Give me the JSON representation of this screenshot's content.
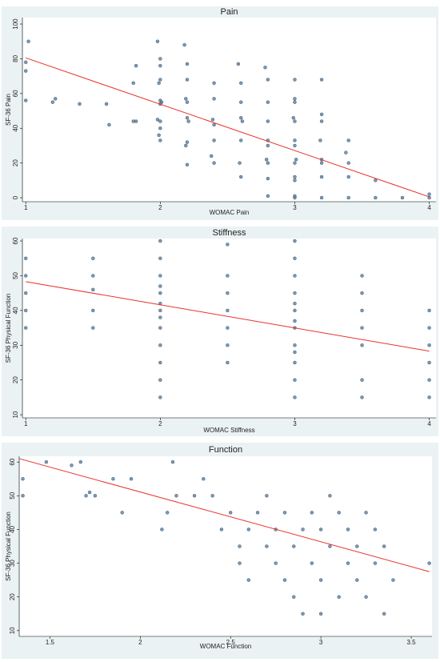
{
  "chart_data": [
    {
      "type": "scatter",
      "title": "Pain",
      "x_label": "WOMAC Pain",
      "y_label": "SF-36 Pain",
      "color": "#5b7f9f",
      "x": [
        1.0,
        1.0,
        1.02,
        1.0,
        1.2,
        1.22,
        1.4,
        1.6,
        1.62,
        1.8,
        1.82,
        1.8,
        1.82,
        1.98,
        2.0,
        2.0,
        2.0,
        1.99,
        2.0,
        2.01,
        2.0,
        1.98,
        2.0,
        2.0,
        1.99,
        2.0,
        2.18,
        2.2,
        2.2,
        2.19,
        2.2,
        2.2,
        2.21,
        2.2,
        2.19,
        2.2,
        2.4,
        2.4,
        2.39,
        2.4,
        2.4,
        2.38,
        2.4,
        2.58,
        2.6,
        2.6,
        2.6,
        2.61,
        2.6,
        2.59,
        2.6,
        2.78,
        2.8,
        2.8,
        2.8,
        2.8,
        2.8,
        2.79,
        2.8,
        2.8,
        2.8,
        3.0,
        3.0,
        3.0,
        2.99,
        3.0,
        3.0,
        3.0,
        3.01,
        3.0,
        3.0,
        3.0,
        3.0,
        3.0,
        3.2,
        3.2,
        3.2,
        3.19,
        3.2,
        3.2,
        3.2,
        3.2,
        3.4,
        3.38,
        3.4,
        3.4,
        3.4,
        3.6,
        3.6,
        3.8,
        4.0,
        4.0
      ],
      "y": [
        78,
        73,
        90,
        56,
        55,
        57,
        54,
        54,
        42,
        44,
        44,
        66,
        76,
        90,
        80,
        76,
        68,
        66,
        56,
        55,
        54,
        45,
        44,
        40,
        36,
        33,
        88,
        77,
        68,
        57,
        55,
        46,
        44,
        32,
        30,
        19,
        66,
        57,
        45,
        42,
        33,
        24,
        20,
        77,
        66,
        55,
        46,
        44,
        33,
        20,
        12,
        75,
        68,
        55,
        44,
        33,
        30,
        22,
        20,
        11,
        1,
        68,
        57,
        55,
        46,
        44,
        33,
        30,
        22,
        20,
        12,
        10,
        1,
        0,
        68,
        48,
        44,
        33,
        22,
        20,
        12,
        0,
        33,
        26,
        20,
        12,
        0,
        10,
        0,
        0,
        0,
        2
      ],
      "fit_line": {
        "x": [
          1,
          4
        ],
        "y": [
          80.5,
          0.5
        ],
        "color": "#e8322c"
      },
      "xlim": [
        0.975,
        4.05
      ],
      "ylim": [
        -2.3,
        103.7
      ],
      "xticks": [
        1,
        2,
        3,
        4
      ],
      "yticks": [
        0,
        20,
        40,
        60,
        80,
        100
      ]
    },
    {
      "type": "scatter",
      "title": "Stiffness",
      "x_label": "WOMAC Stiffness",
      "y_label": "SF-36 Physical Function",
      "color": "#5b7f9f",
      "x": [
        1,
        1,
        1,
        1,
        1,
        1.5,
        1.5,
        1.5,
        1.5,
        1.5,
        2,
        2,
        2,
        2,
        2,
        2,
        2,
        2,
        2,
        2,
        2,
        2,
        2,
        2.5,
        2.5,
        2.5,
        2.5,
        2.5,
        2.5,
        2.5,
        3,
        3,
        3,
        3,
        3,
        3,
        3,
        3,
        3,
        3,
        3,
        3,
        3,
        3.5,
        3.5,
        3.5,
        3.5,
        3.5,
        3.5,
        3.5,
        4,
        4,
        4,
        4,
        4,
        4
      ],
      "y": [
        55,
        50,
        45,
        40,
        35,
        55,
        50,
        46,
        40,
        35,
        60,
        55,
        50,
        47,
        45,
        42,
        40,
        38,
        35,
        30,
        25,
        20,
        15,
        59,
        50,
        45,
        40,
        35,
        30,
        25,
        60,
        55,
        50,
        45,
        42,
        40,
        37,
        35,
        30,
        28,
        25,
        20,
        15,
        50,
        45,
        40,
        35,
        30,
        20,
        15,
        40,
        35,
        30,
        25,
        20,
        15
      ],
      "fit_line": {
        "x": [
          1,
          4
        ],
        "y": [
          48.3,
          28.3
        ],
        "color": "#e8322c"
      },
      "xlim": [
        0.975,
        4.05
      ],
      "ylim": [
        9.1,
        60.7
      ],
      "xticks": [
        1,
        2,
        3,
        4
      ],
      "yticks": [
        10,
        20,
        30,
        40,
        50,
        60
      ]
    },
    {
      "type": "scatter",
      "title": "Function",
      "x_label": "WOMAC Function",
      "y_label": "SF-36 Physical Function",
      "color": "#5b7f9f",
      "x": [
        1.35,
        1.35,
        1.48,
        1.62,
        1.67,
        1.7,
        1.72,
        1.75,
        1.85,
        1.9,
        1.95,
        2.12,
        2.15,
        2.18,
        2.2,
        2.3,
        2.35,
        2.4,
        2.45,
        2.5,
        2.55,
        2.55,
        2.6,
        2.6,
        2.65,
        2.7,
        2.7,
        2.75,
        2.75,
        2.8,
        2.8,
        2.85,
        2.85,
        2.9,
        2.9,
        2.95,
        2.95,
        3.0,
        3.0,
        3.0,
        3.05,
        3.05,
        3.1,
        3.1,
        3.15,
        3.15,
        3.2,
        3.2,
        3.25,
        3.25,
        3.3,
        3.3,
        3.35,
        3.35,
        3.4,
        3.6
      ],
      "y": [
        50,
        55,
        60,
        59,
        60,
        50,
        51,
        50,
        55,
        45,
        55,
        40,
        45,
        60,
        50,
        50,
        55,
        50,
        40,
        45,
        35,
        30,
        40,
        25,
        45,
        50,
        35,
        40,
        30,
        45,
        25,
        35,
        20,
        40,
        15,
        45,
        30,
        40,
        25,
        15,
        50,
        35,
        45,
        20,
        40,
        30,
        35,
        25,
        45,
        20,
        40,
        30,
        35,
        15,
        25,
        30
      ],
      "fit_line": {
        "x": [
          1.33,
          3.6
        ],
        "y": [
          61,
          27.5
        ],
        "color": "#e8322c"
      },
      "xlim": [
        1.33,
        3.615
      ],
      "ylim": [
        8.3,
        61.7
      ],
      "xticks": [
        1.5,
        2,
        2.5,
        3,
        3.5
      ],
      "yticks": [
        10,
        20,
        30,
        40,
        50,
        60
      ]
    }
  ]
}
